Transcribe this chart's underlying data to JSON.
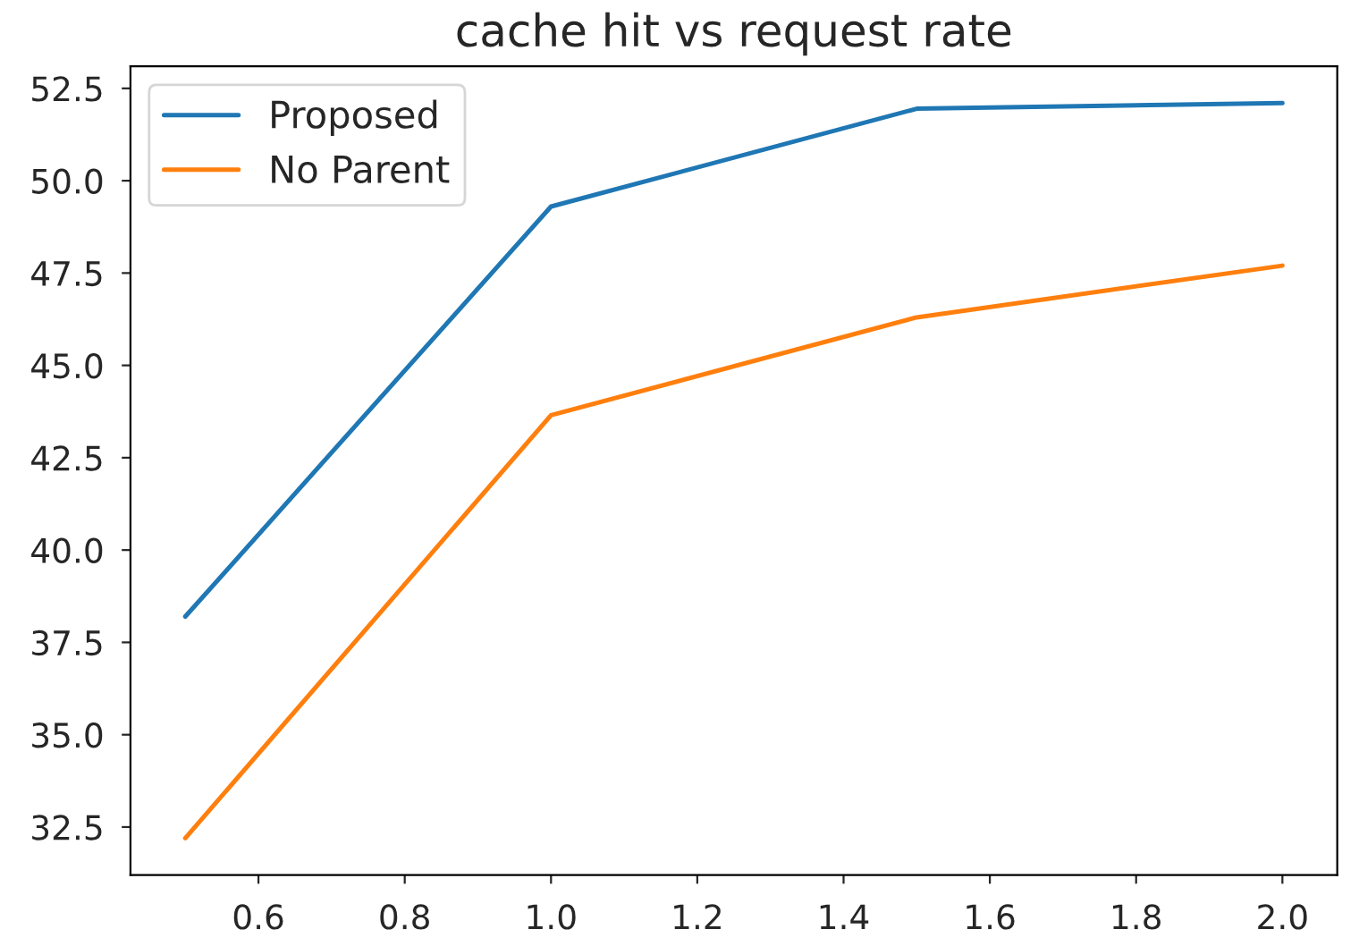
{
  "chart_data": {
    "type": "line",
    "title": "cache hit vs request rate",
    "x": [
      0.5,
      1.0,
      1.5,
      2.0
    ],
    "series": [
      {
        "name": "Proposed",
        "color": "#1f77b4",
        "values": [
          38.2,
          49.3,
          51.95,
          52.1
        ]
      },
      {
        "name": "No Parent",
        "color": "#ff7f0e",
        "values": [
          32.2,
          43.65,
          46.3,
          47.7
        ]
      }
    ],
    "xlim": [
      0.425,
      2.075
    ],
    "ylim": [
      31.2,
      53.1
    ],
    "xticks": [
      0.6,
      0.8,
      {
        "value": 1,
        "label": "1.0"
      },
      1.2,
      1.4,
      1.6,
      1.8,
      {
        "value": 2,
        "label": "2.0"
      }
    ],
    "yticks": [
      32.5,
      {
        "value": 35,
        "label": "35.0"
      },
      37.5,
      {
        "value": 40,
        "label": "40.0"
      },
      42.5,
      {
        "value": 45,
        "label": "45.0"
      },
      47.5,
      {
        "value": 50,
        "label": "50.0"
      },
      52.5
    ],
    "legend": "top left"
  }
}
